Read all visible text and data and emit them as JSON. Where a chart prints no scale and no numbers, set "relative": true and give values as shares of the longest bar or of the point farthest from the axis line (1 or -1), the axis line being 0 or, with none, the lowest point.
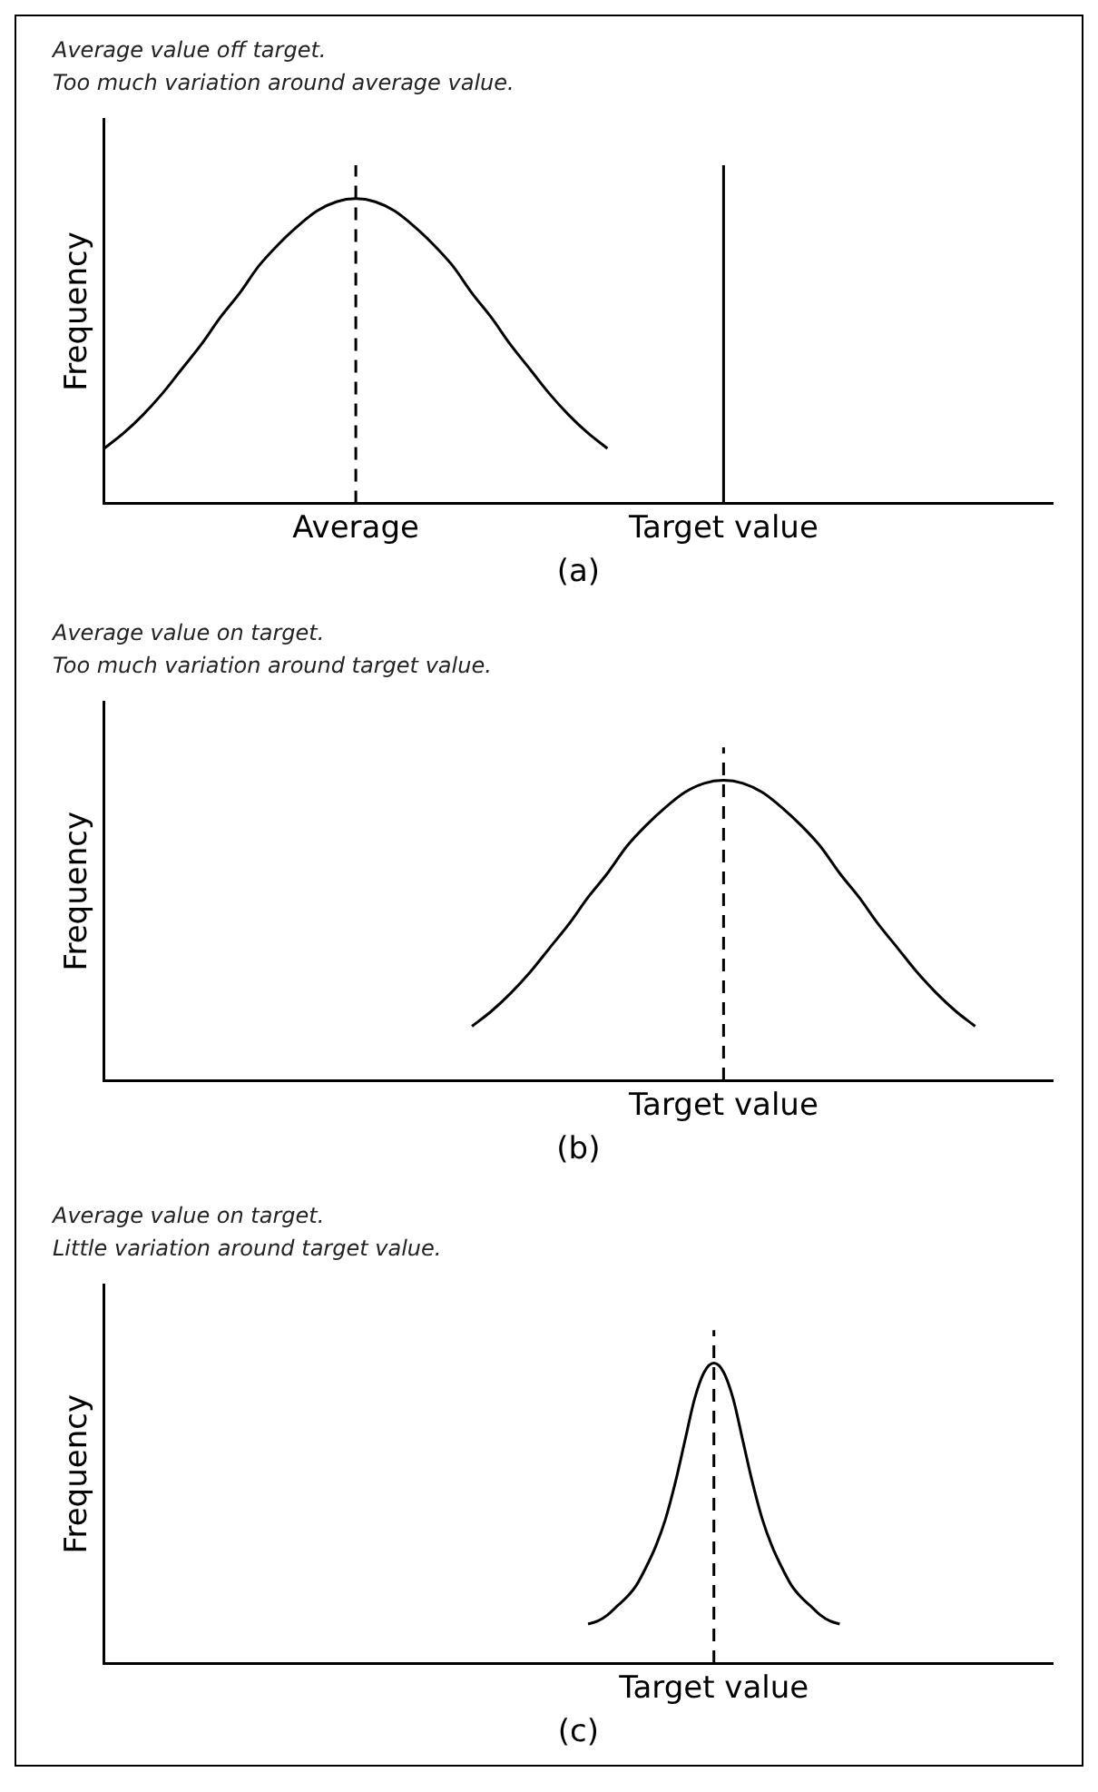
{
  "chart_data": [
    {
      "type": "line",
      "title": "Average value off target.",
      "subtitle": "Too much variation around average value.",
      "ylabel": "Frequency",
      "xlabel": "(a)",
      "relative": true,
      "marker": "none",
      "color": "#000000",
      "categories": [
        null,
        null,
        null,
        null,
        null,
        null,
        null,
        null,
        null,
        null,
        null,
        null,
        null,
        "Average",
        null,
        null,
        null,
        null,
        null,
        null,
        null,
        null,
        null,
        null,
        null,
        null,
        null,
        null,
        null,
        null,
        null,
        null,
        "Target value",
        null,
        null,
        null,
        null,
        null,
        null,
        null,
        null,
        null,
        null,
        null,
        null,
        null,
        null,
        null,
        null,
        null
      ],
      "values": [
        0.18,
        0.23,
        0.29,
        0.36,
        0.44,
        0.52,
        0.61,
        0.69,
        0.78,
        0.85,
        0.91,
        0.96,
        0.99,
        1,
        0.99,
        0.96,
        0.91,
        0.85,
        0.78,
        0.69,
        0.61,
        0.52,
        0.44,
        0.36,
        0.29,
        0.23,
        0.18,
        null,
        null,
        null,
        null,
        null,
        null,
        null,
        null,
        null,
        null,
        null,
        null,
        null,
        null,
        null,
        null,
        null,
        null,
        null,
        null,
        null,
        null,
        null
      ],
      "ref_lines": [
        {
          "axis": "x",
          "value": "Average",
          "line_style": "dashed"
        },
        {
          "axis": "x",
          "value": "Target value",
          "line_style": "solid"
        }
      ]
    },
    {
      "type": "line",
      "title": "Average value on target.",
      "subtitle": "Too much variation around target value.",
      "ylabel": "Frequency",
      "xlabel": "Target value",
      "annotations": [
        "(b)"
      ],
      "relative": true,
      "marker": "none",
      "color": "#000000",
      "categories": [
        null,
        null,
        null,
        null,
        null,
        null,
        null,
        null,
        null,
        null,
        null,
        null,
        null,
        null,
        null,
        null,
        null,
        null,
        null,
        null,
        null,
        null,
        null,
        null,
        null,
        null,
        null,
        null,
        null,
        null,
        null,
        null,
        null,
        null,
        null,
        null,
        null,
        null,
        null,
        null,
        null,
        null,
        null,
        null,
        null,
        null,
        null,
        null,
        null,
        null
      ],
      "values": [
        null,
        null,
        null,
        null,
        null,
        null,
        null,
        null,
        null,
        null,
        null,
        null,
        null,
        null,
        null,
        null,
        null,
        null,
        null,
        0.18,
        0.23,
        0.29,
        0.36,
        0.44,
        0.52,
        0.61,
        0.69,
        0.78,
        0.85,
        0.91,
        0.96,
        0.99,
        1,
        0.99,
        0.96,
        0.91,
        0.85,
        0.78,
        0.69,
        0.61,
        0.52,
        0.44,
        0.36,
        0.29,
        0.23,
        0.18,
        null,
        null,
        null,
        null
      ]
    },
    {
      "type": "line",
      "title": "Average value on target.",
      "subtitle": "Little variation around target value.",
      "ylabel": "Frequency",
      "xlabel": "Target value",
      "annotations": [
        "(c)"
      ],
      "relative": true,
      "marker": "none",
      "color": "#000000",
      "categories": [
        null,
        null,
        null,
        null,
        null,
        null,
        null,
        null,
        null,
        null,
        null,
        null,
        null,
        null,
        null,
        null,
        null,
        null,
        null,
        null,
        null,
        null,
        null,
        null,
        null,
        null,
        null,
        null,
        null,
        null,
        null,
        null,
        null,
        null,
        null,
        null,
        null,
        null,
        null,
        null,
        null,
        null,
        null,
        null,
        null,
        null,
        null,
        null,
        null,
        null,
        null,
        null,
        null,
        null,
        null,
        null,
        null,
        null,
        null,
        null,
        null,
        null,
        null,
        null,
        null,
        null,
        null,
        null,
        null,
        null,
        null,
        null,
        null,
        null,
        null,
        null,
        null,
        null,
        null,
        null,
        null,
        null,
        null,
        null,
        null,
        null,
        null,
        null,
        null,
        null,
        null,
        null,
        null,
        null,
        null,
        null,
        null,
        null,
        null
      ],
      "values": [
        null,
        null,
        null,
        null,
        null,
        null,
        null,
        null,
        null,
        null,
        null,
        null,
        null,
        null,
        null,
        null,
        null,
        null,
        null,
        null,
        null,
        null,
        null,
        null,
        null,
        null,
        null,
        null,
        null,
        null,
        null,
        null,
        null,
        null,
        null,
        null,
        null,
        null,
        null,
        null,
        null,
        null,
        null,
        null,
        null,
        null,
        null,
        null,
        null,
        null,
        0.13,
        0.14,
        0.16,
        0.19,
        0.22,
        0.26,
        0.32,
        0.39,
        0.48,
        0.6,
        0.74,
        0.88,
        0.97,
        1,
        0.97,
        0.88,
        0.74,
        0.6,
        0.48,
        0.39,
        0.32,
        0.26,
        0.22,
        0.19,
        0.16,
        0.14,
        0.13,
        null,
        null,
        null,
        null,
        null,
        null,
        null,
        null,
        null,
        null,
        null,
        null,
        null,
        null,
        null,
        null,
        null,
        null,
        null,
        null,
        null,
        null
      ]
    }
  ]
}
